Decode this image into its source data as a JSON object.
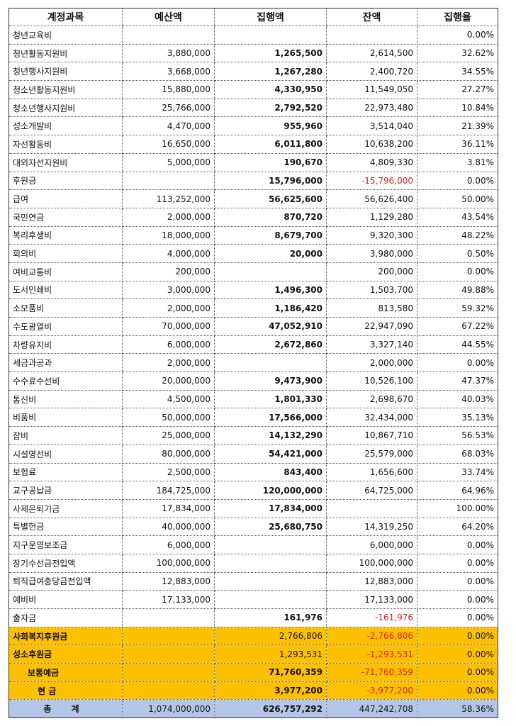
{
  "table": {
    "header": [
      "계정과목",
      "예산액",
      "집행액",
      "잔액",
      "집행율"
    ],
    "rows": [
      [
        "청년교육비",
        null,
        null,
        null,
        "0.00%"
      ],
      [
        "청년활동지원비",
        "3,880,000",
        "1,265,500",
        "2,614,500",
        "32.62%"
      ],
      [
        "청년행사지원비",
        "3,668,000",
        "1,267,280",
        "2,400,720",
        "34.55%"
      ],
      [
        "청소년활동지원비",
        "15,880,000",
        "4,330,950",
        "11,549,050",
        "27.27%"
      ],
      [
        "청소년행사지원비",
        "25,766,000",
        "2,792,520",
        "22,973,480",
        "10.84%"
      ],
      [
        "성소개발비",
        "4,470,000",
        "955,960",
        "3,514,040",
        "21.39%"
      ],
      [
        "자선활동비",
        "16,650,000",
        "6,011,800",
        "10,638,200",
        "36.11%"
      ],
      [
        "대외자선지원비",
        "5,000,000",
        "190,670",
        "4,809,330",
        "3.81%"
      ],
      [
        "후원금",
        null,
        "15,796,000",
        "-15,796,000",
        "0.00%"
      ],
      [
        "급여",
        "113,252,000",
        "56,625,600",
        "56,626,400",
        "50.00%"
      ],
      [
        "국민연금",
        "2,000,000",
        "870,720",
        "1,129,280",
        "43.54%"
      ],
      [
        "복리후생비",
        "18,000,000",
        "8,679,700",
        "9,320,300",
        "48.22%"
      ],
      [
        "회의비",
        "4,000,000",
        "20,000",
        "3,980,000",
        "0.50%"
      ],
      [
        "여비교통비",
        "200,000",
        null,
        "200,000",
        "0.00%"
      ],
      [
        "도서인쇄비",
        "3,000,000",
        "1,496,300",
        "1,503,700",
        "49.88%"
      ],
      [
        "소모품비",
        "2,000,000",
        "1,186,420",
        "813,580",
        "59.32%"
      ],
      [
        "수도광열비",
        "70,000,000",
        "47,052,910",
        "22,947,090",
        "67.22%"
      ],
      [
        "차량유지비",
        "6,000,000",
        "2,672,860",
        "3,327,140",
        "44.55%"
      ],
      [
        "세금과공과",
        "2,000,000",
        null,
        "2,000,000",
        "0.00%"
      ],
      [
        "수수료수선비",
        "20,000,000",
        "9,473,900",
        "10,526,100",
        "47.37%"
      ],
      [
        "통신비",
        "4,500,000",
        "1,801,330",
        "2,698,670",
        "40.03%"
      ],
      [
        "비품비",
        "50,000,000",
        "17,566,000",
        "32,434,000",
        "35.13%"
      ],
      [
        "잡비",
        "25,000,000",
        "14,132,290",
        "10,867,710",
        "56.53%"
      ],
      [
        "시설영선비",
        "80,000,000",
        "54,421,000",
        "25,579,000",
        "68.03%"
      ],
      [
        "보험료",
        "2,500,000",
        "843,400",
        "1,656,600",
        "33.74%"
      ],
      [
        "교구공납금",
        "184,725,000",
        "120,000,000",
        "64,725,000",
        "64.96%"
      ],
      [
        "사제은퇴기금",
        "17,834,000",
        "17,834,000",
        null,
        "100.00%"
      ],
      [
        "특별헌금",
        "40,000,000",
        "25,680,750",
        "14,319,250",
        "64.20%"
      ],
      [
        "지구운영보조금",
        "6,000,000",
        null,
        "6,000,000",
        "0.00%"
      ],
      [
        "장기수선금전입액",
        "100,000,000",
        null,
        "100,000,000",
        "0.00%"
      ],
      [
        "퇴직급여충당금전입액",
        "12,883,000",
        null,
        "12,883,000",
        "0.00%"
      ],
      [
        "예비비",
        "17,133,000",
        null,
        "17,133,000",
        "0.00%"
      ],
      [
        "출자금",
        null,
        "161,976",
        "-161,976",
        "0.00%"
      ],
      [
        "사회복지후원금",
        null,
        "2,766,806",
        "-2,766,806",
        "0.00%"
      ],
      [
        "성소후원금",
        null,
        "1,293,531",
        "-1,293,531",
        "0.00%"
      ],
      [
        "보통예금",
        null,
        "71,760,359",
        "-71,760,359",
        "0.00%"
      ],
      [
        "현 금",
        null,
        "3,977,200",
        "-3,977,200",
        "0.00%"
      ]
    ],
    "total": [
      "총 계",
      "1,074,000,000",
      "626,757,292",
      "447,242,708",
      "58.36%"
    ]
  }
}
